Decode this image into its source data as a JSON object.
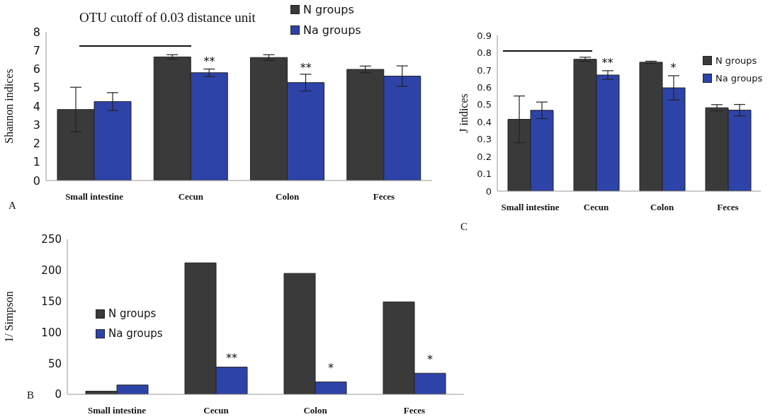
{
  "chart_data": [
    {
      "type": "bar",
      "title": "OTU cutoff of 0.03 distance unit",
      "ylabel": "Shannon indices",
      "categories": [
        "Small intestine",
        "Cecun",
        "Colon",
        "Feces"
      ],
      "series": [
        {
          "name": "N groups",
          "color": "#3a3a3a",
          "values": [
            3.82,
            6.65,
            6.62,
            5.98
          ],
          "errors": [
            1.2,
            0.12,
            0.15,
            0.18
          ]
        },
        {
          "name": "Na groups",
          "color": "#2e43a8",
          "values": [
            4.25,
            5.8,
            5.27,
            5.62
          ],
          "errors": [
            0.48,
            0.2,
            0.45,
            0.55
          ]
        }
      ],
      "ylim": [
        0,
        8
      ],
      "yticks": [
        0,
        1,
        2,
        3,
        4,
        5,
        6,
        7,
        8
      ],
      "grid": false,
      "legend": "top right",
      "annotations": [
        "A",
        {
          "text": "**",
          "x": "Cecun",
          "y": 6.2
        },
        {
          "text": "**",
          "x": "Colon",
          "y": 5.85
        }
      ]
    },
    {
      "type": "bar",
      "ylabel": "J indices",
      "categories": [
        "Small intestine",
        "Cecun",
        "Colon",
        "Feces"
      ],
      "series": [
        {
          "name": "N groups",
          "color": "#3a3a3a",
          "values": [
            0.415,
            0.762,
            0.745,
            0.482
          ],
          "errors": [
            0.135,
            0.012,
            0.006,
            0.018
          ]
        },
        {
          "name": "Na groups",
          "color": "#2e43a8",
          "values": [
            0.467,
            0.671,
            0.597,
            0.468
          ],
          "errors": [
            0.048,
            0.025,
            0.07,
            0.033
          ]
        }
      ],
      "ylim": [
        0,
        0.9
      ],
      "yticks": [
        0,
        0.1,
        0.2,
        0.3,
        0.4,
        0.5,
        0.6,
        0.7,
        0.8,
        0.9
      ],
      "grid": false,
      "legend": "right",
      "annotations": [
        "C",
        {
          "text": "**",
          "x": "Cecun",
          "y": 0.72
        },
        {
          "text": "*",
          "x": "Colon",
          "y": 0.69
        }
      ]
    },
    {
      "type": "bar",
      "ylabel": "1/ Simpson",
      "categories": [
        "Small intestine",
        "Cecun",
        "Colon",
        "Feces"
      ],
      "series": [
        {
          "name": "N groups",
          "color": "#3a3a3a",
          "values": [
            5,
            212,
            195,
            149
          ]
        },
        {
          "name": "Na groups",
          "color": "#2e43a8",
          "values": [
            15,
            44,
            20,
            34
          ]
        }
      ],
      "ylim": [
        0,
        250
      ],
      "yticks": [
        0,
        50,
        100,
        150,
        200,
        250
      ],
      "grid": false,
      "legend": "left",
      "annotations": [
        "B",
        {
          "text": "**",
          "x": "Cecun",
          "y": 52
        },
        {
          "text": "*",
          "x": "Colon",
          "y": 36
        },
        {
          "text": "*",
          "x": "Feces",
          "y": 50
        }
      ]
    }
  ]
}
